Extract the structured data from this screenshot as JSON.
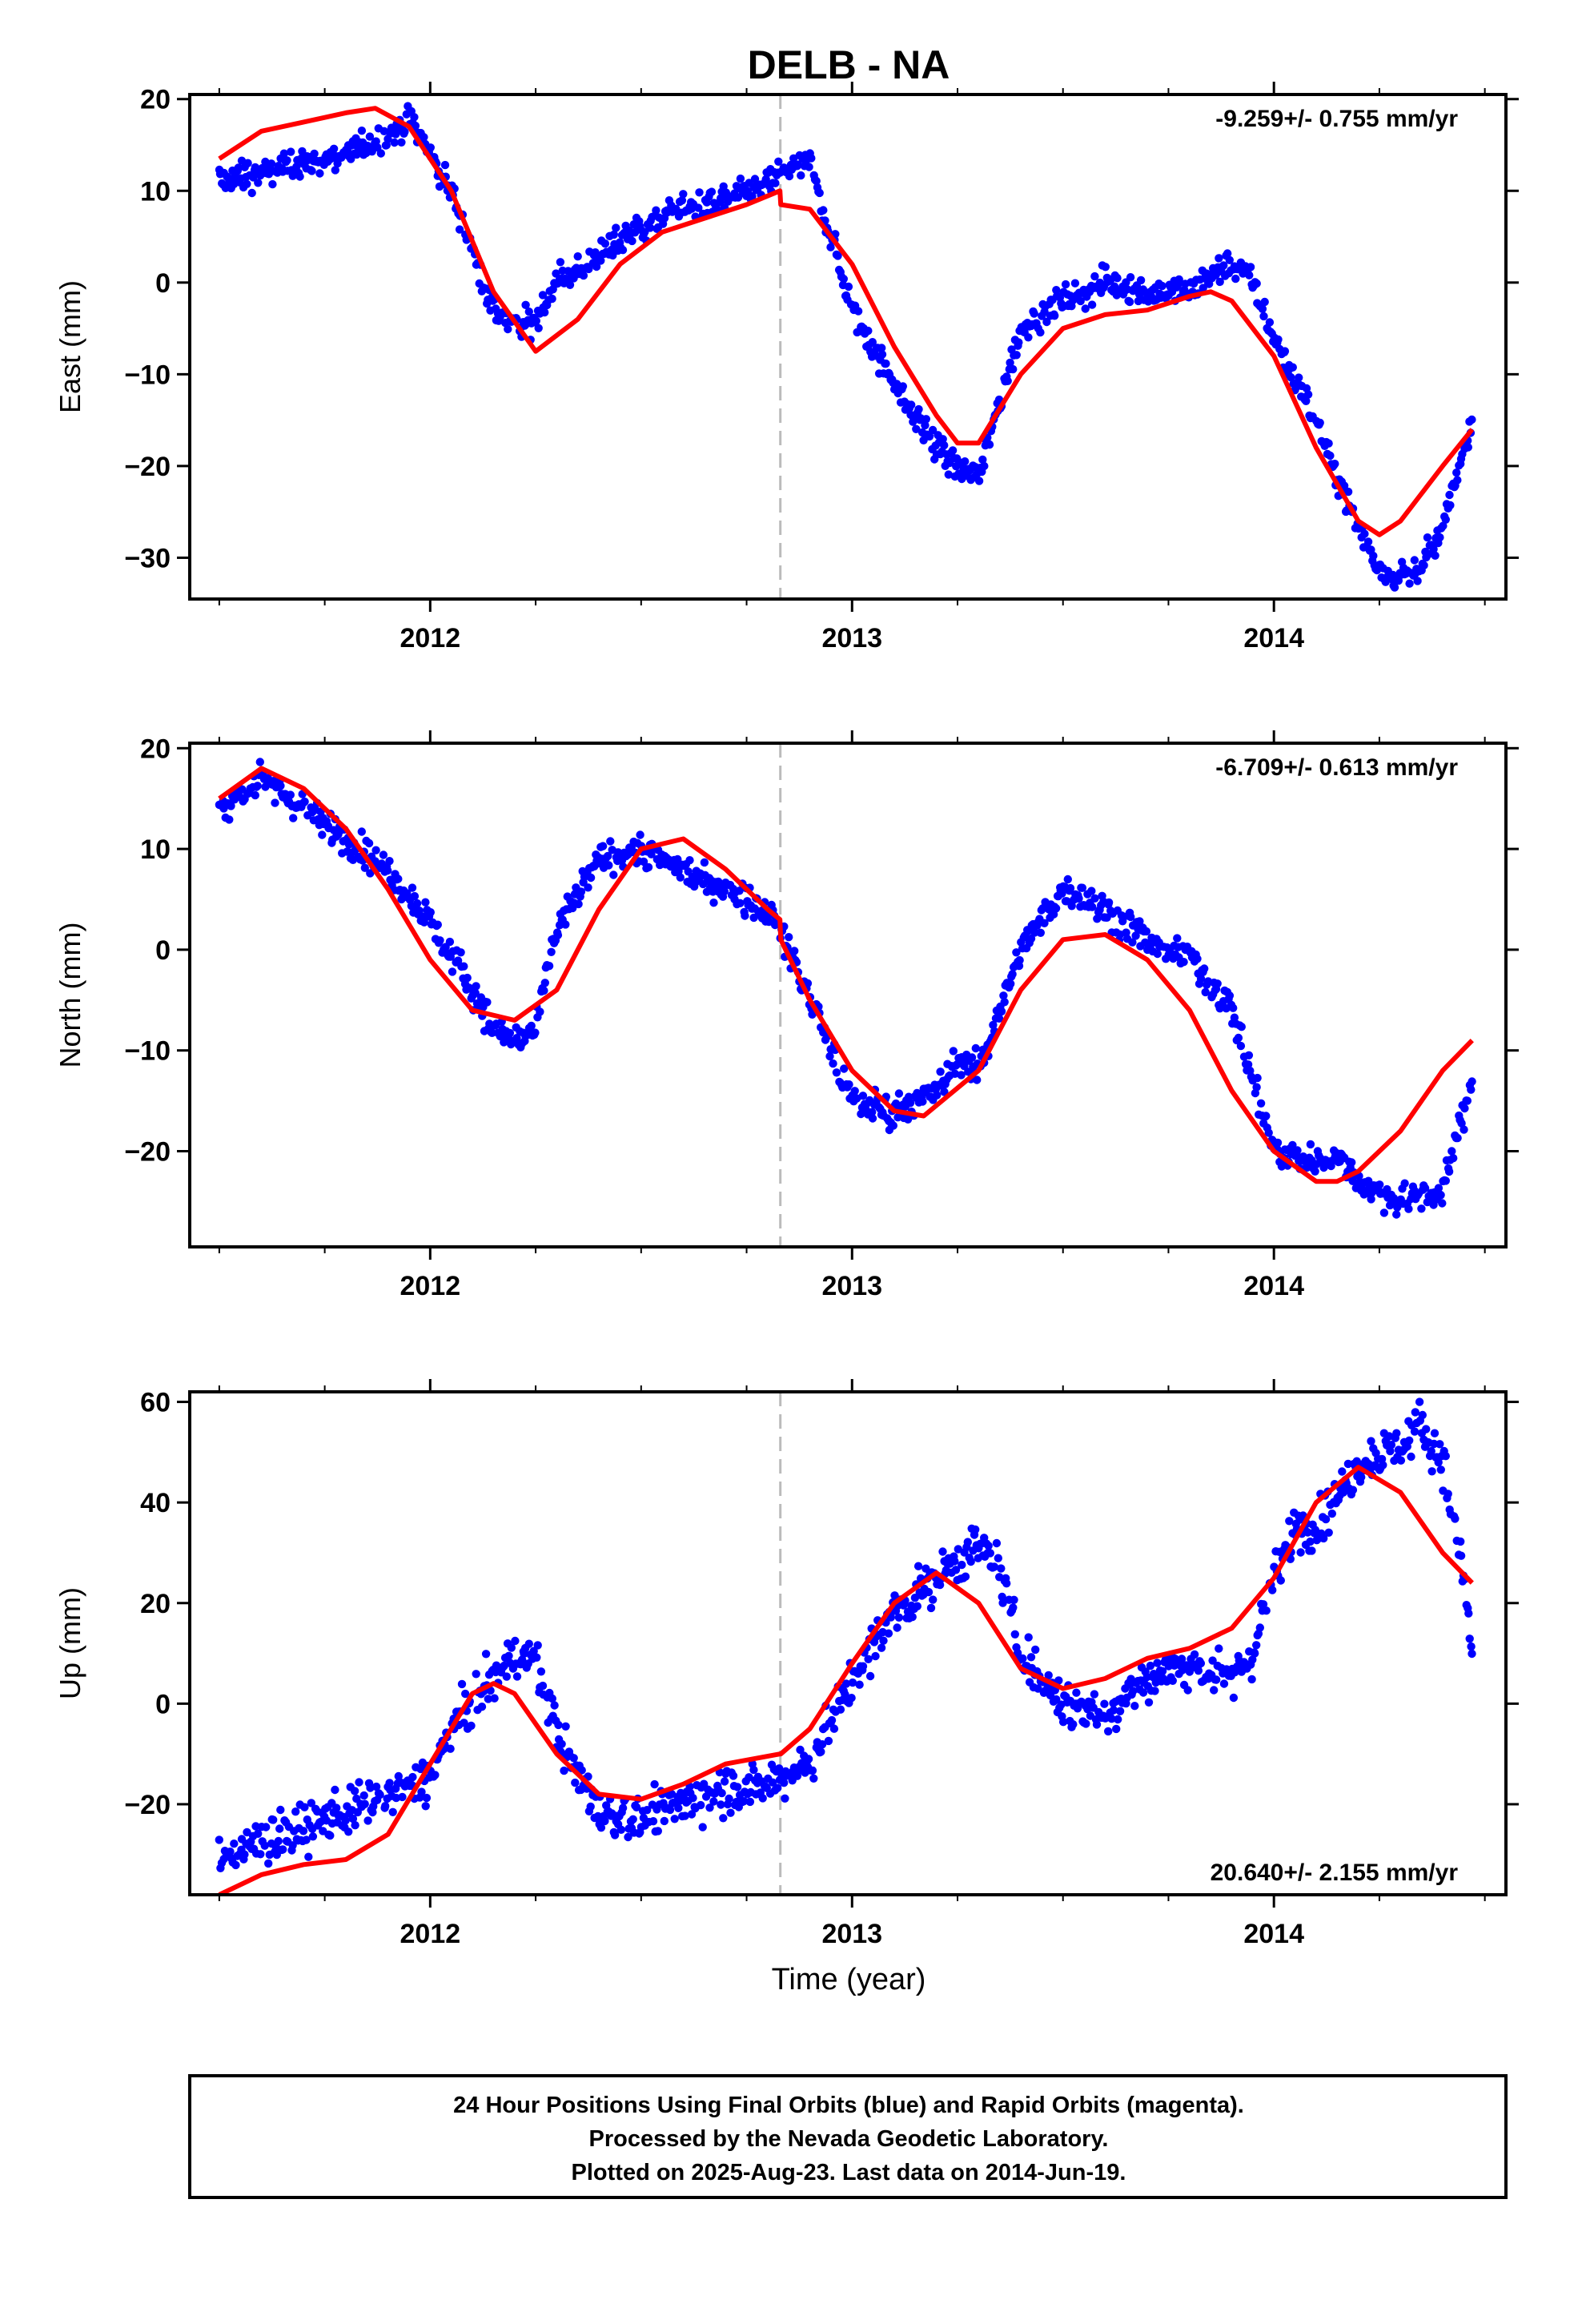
{
  "title": "DELB - NA",
  "xlabel": "Time (year)",
  "colors": {
    "data": "#0000ff",
    "model": "#ff0000",
    "break": "#bbbbbb",
    "frame": "#000000"
  },
  "footer": [
    "24 Hour Positions Using Final Orbits (blue) and Rapid Orbits (magenta).",
    "Processed by the Nevada Geodetic Laboratory.",
    "Plotted on 2025-Aug-23. Last data on 2014-Jun-19."
  ],
  "chart_data": [
    {
      "type": "scatter",
      "ylabel": "East (mm)",
      "rate_label": "-9.259+/- 0.755 mm/yr",
      "rate_position": "top-right",
      "xlim": [
        2011.43,
        2014.55
      ],
      "ylim": [
        -34.5,
        20.5
      ],
      "xticks": [
        2012,
        2013,
        2014
      ],
      "yticks": [
        -30,
        -20,
        -10,
        0,
        10,
        20
      ],
      "break_x": 2012.83,
      "data_x_range": [
        2011.5,
        2014.47
      ],
      "series": [
        {
          "kind": "points",
          "x": [
            2011.5,
            2011.6,
            2011.7,
            2011.8,
            2011.9,
            2011.95,
            2012.05,
            2012.15,
            2012.2,
            2012.25,
            2012.3,
            2012.4,
            2012.5,
            2012.6,
            2012.7,
            2012.8,
            2012.83,
            2012.9,
            2012.95,
            2013.0,
            2013.1,
            2013.2,
            2013.25,
            2013.3,
            2013.4,
            2013.5,
            2013.6,
            2013.7,
            2013.8,
            2013.85,
            2013.9,
            2013.95,
            2014.0,
            2014.1,
            2014.15,
            2014.2,
            2014.25,
            2014.3,
            2014.35,
            2014.4,
            2014.47
          ],
          "y": [
            11,
            12,
            13,
            14,
            16,
            18,
            10,
            -3,
            -5,
            -4,
            0,
            3,
            6,
            8,
            9,
            11,
            12,
            13,
            5,
            -3,
            -11,
            -18,
            -20,
            -21,
            -5,
            -2,
            0,
            -1,
            -1,
            1,
            2,
            0,
            -6,
            -15,
            -21,
            -27,
            -31,
            -32,
            -31,
            -27,
            -15
          ]
        },
        {
          "kind": "model",
          "x": [
            2011.5,
            2011.6,
            2011.7,
            2011.8,
            2011.87,
            2011.95,
            2012.05,
            2012.15,
            2012.25,
            2012.35,
            2012.45,
            2012.55,
            2012.65,
            2012.75,
            2012.829,
            2012.831,
            2012.9,
            2013.0,
            2013.1,
            2013.2,
            2013.25,
            2013.3,
            2013.4,
            2013.5,
            2013.6,
            2013.7,
            2013.8,
            2013.85,
            2013.9,
            2014.0,
            2014.1,
            2014.2,
            2014.25,
            2014.3,
            2014.4,
            2014.47
          ],
          "y": [
            13.5,
            16.5,
            17.5,
            18.5,
            19,
            17,
            10,
            -1,
            -7.5,
            -4,
            2,
            5.5,
            7,
            8.5,
            10,
            8.5,
            8,
            2,
            -7,
            -14.5,
            -17.5,
            -17.5,
            -10,
            -5,
            -3.5,
            -3,
            -1.5,
            -1,
            -2,
            -8,
            -18,
            -26,
            -27.5,
            -26,
            -20,
            -16
          ]
        }
      ]
    },
    {
      "type": "scatter",
      "ylabel": "North (mm)",
      "rate_label": "-6.709+/- 0.613 mm/yr",
      "rate_position": "top-right",
      "xlim": [
        2011.43,
        2014.55
      ],
      "ylim": [
        -29.5,
        20.5
      ],
      "xticks": [
        2012,
        2013,
        2014
      ],
      "yticks": [
        -20,
        -10,
        0,
        10,
        20
      ],
      "break_x": 2012.83,
      "data_x_range": [
        2011.5,
        2014.47
      ],
      "series": [
        {
          "kind": "points",
          "x": [
            2011.5,
            2011.6,
            2011.7,
            2011.8,
            2011.9,
            2012.0,
            2012.1,
            2012.15,
            2012.2,
            2012.25,
            2012.3,
            2012.4,
            2012.5,
            2012.6,
            2012.7,
            2012.8,
            2012.83,
            2012.9,
            2013.0,
            2013.1,
            2013.2,
            2013.25,
            2013.3,
            2013.4,
            2013.5,
            2013.6,
            2013.7,
            2013.8,
            2013.9,
            2014.0,
            2014.1,
            2014.15,
            2014.2,
            2014.25,
            2014.3,
            2014.4,
            2014.47
          ],
          "y": [
            14,
            17,
            14,
            11,
            8,
            3,
            -4,
            -8,
            -9,
            -8,
            2,
            9,
            10,
            8,
            6,
            4,
            2,
            -5,
            -15,
            -16,
            -14,
            -11,
            -12,
            0,
            6,
            4,
            1,
            -1,
            -6,
            -20,
            -21,
            -20,
            -23,
            -24,
            -25,
            -24,
            -13
          ]
        },
        {
          "kind": "model",
          "x": [
            2011.5,
            2011.6,
            2011.7,
            2011.8,
            2011.9,
            2012.0,
            2012.1,
            2012.2,
            2012.3,
            2012.4,
            2012.5,
            2012.6,
            2012.7,
            2012.8,
            2012.829,
            2012.831,
            2012.9,
            2013.0,
            2013.1,
            2013.17,
            2013.3,
            2013.4,
            2013.5,
            2013.6,
            2013.7,
            2013.8,
            2013.9,
            2014.0,
            2014.1,
            2014.15,
            2014.2,
            2014.3,
            2014.4,
            2014.47
          ],
          "y": [
            15,
            18,
            16,
            12,
            6,
            -1,
            -6,
            -7,
            -4,
            4,
            10,
            11,
            8,
            4,
            3,
            1,
            -5,
            -12,
            -16,
            -16.5,
            -12,
            -4,
            1,
            1.5,
            -1,
            -6,
            -14,
            -20,
            -23,
            -23,
            -22,
            -18,
            -12,
            -9
          ]
        }
      ]
    },
    {
      "type": "scatter",
      "ylabel": "Up (mm)",
      "rate_label": "20.640+/- 2.155 mm/yr",
      "rate_position": "bottom-right",
      "xlim": [
        2011.43,
        2014.55
      ],
      "ylim": [
        -38,
        62
      ],
      "xticks": [
        2012,
        2013,
        2014
      ],
      "yticks": [
        -20,
        0,
        20,
        40,
        60
      ],
      "break_x": 2012.83,
      "data_x_range": [
        2011.5,
        2014.47
      ],
      "series": [
        {
          "kind": "points",
          "x": [
            2011.5,
            2011.6,
            2011.7,
            2011.8,
            2011.9,
            2012.0,
            2012.05,
            2012.1,
            2012.15,
            2012.2,
            2012.25,
            2012.3,
            2012.35,
            2012.4,
            2012.5,
            2012.6,
            2012.7,
            2012.8,
            2012.83,
            2012.9,
            2013.0,
            2013.1,
            2013.2,
            2013.25,
            2013.3,
            2013.35,
            2013.4,
            2013.5,
            2013.6,
            2013.7,
            2013.8,
            2013.9,
            2013.95,
            2014.0,
            2014.05,
            2014.1,
            2014.2,
            2014.25,
            2014.3,
            2014.35,
            2014.4,
            2014.45,
            2014.47
          ],
          "y": [
            -30,
            -28,
            -25,
            -22,
            -18,
            -15,
            -5,
            0,
            5,
            10,
            8,
            -5,
            -15,
            -22,
            -23,
            -20,
            -17,
            -16,
            -15,
            -12,
            5,
            18,
            25,
            28,
            32,
            27,
            10,
            0,
            -2,
            5,
            8,
            5,
            10,
            25,
            35,
            35,
            48,
            50,
            52,
            55,
            48,
            25,
            10
          ]
        },
        {
          "kind": "model",
          "x": [
            2011.5,
            2011.6,
            2011.7,
            2011.8,
            2011.9,
            2012.0,
            2012.1,
            2012.15,
            2012.2,
            2012.3,
            2012.4,
            2012.5,
            2012.6,
            2012.7,
            2012.829,
            2012.831,
            2012.9,
            2013.0,
            2013.1,
            2013.2,
            2013.3,
            2013.4,
            2013.5,
            2013.6,
            2013.7,
            2013.8,
            2013.9,
            2014.0,
            2014.1,
            2014.2,
            2014.3,
            2014.4,
            2014.47
          ],
          "y": [
            -38,
            -34,
            -32,
            -31,
            -26,
            -12,
            2,
            4,
            2,
            -10,
            -18,
            -19,
            -16,
            -12,
            -10,
            -10,
            -5,
            8,
            20,
            26,
            20,
            7,
            3,
            5,
            9,
            11,
            15,
            25,
            40,
            47,
            42,
            30,
            24
          ]
        }
      ]
    }
  ]
}
